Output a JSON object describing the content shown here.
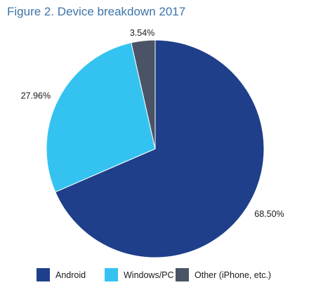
{
  "chart_data": {
    "type": "pie",
    "title": "Figure 2. Device breakdown 2017",
    "categories": [
      "Android",
      "Windows/PC",
      "Other (iPhone, etc.)"
    ],
    "values": [
      68.5,
      27.96,
      3.54
    ],
    "labels": [
      "68.50%",
      "27.96%",
      "3.54%"
    ],
    "colors": [
      "#1f3f8a",
      "#34c3f0",
      "#4a5466"
    ],
    "legend_position": "bottom"
  }
}
